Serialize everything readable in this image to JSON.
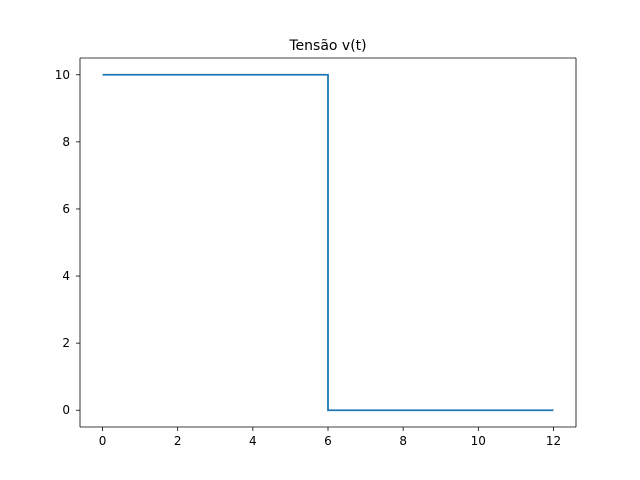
{
  "chart_data": {
    "type": "line",
    "title": "Tensão v(t)",
    "xlabel": "",
    "ylabel": "",
    "xlim": [
      -0.6,
      12.6
    ],
    "ylim": [
      -0.5,
      10.5
    ],
    "x_ticks": [
      0,
      2,
      4,
      6,
      8,
      10,
      12
    ],
    "x_tick_labels": [
      "0",
      "2",
      "4",
      "6",
      "8",
      "10",
      "12"
    ],
    "y_ticks": [
      0,
      2,
      4,
      6,
      8,
      10
    ],
    "y_tick_labels": [
      "0",
      "2",
      "4",
      "6",
      "8",
      "10"
    ],
    "grid": false,
    "series": [
      {
        "color": "#1f77b4",
        "x": [
          0,
          6,
          6,
          12
        ],
        "y": [
          10,
          10,
          0,
          0
        ]
      }
    ]
  }
}
